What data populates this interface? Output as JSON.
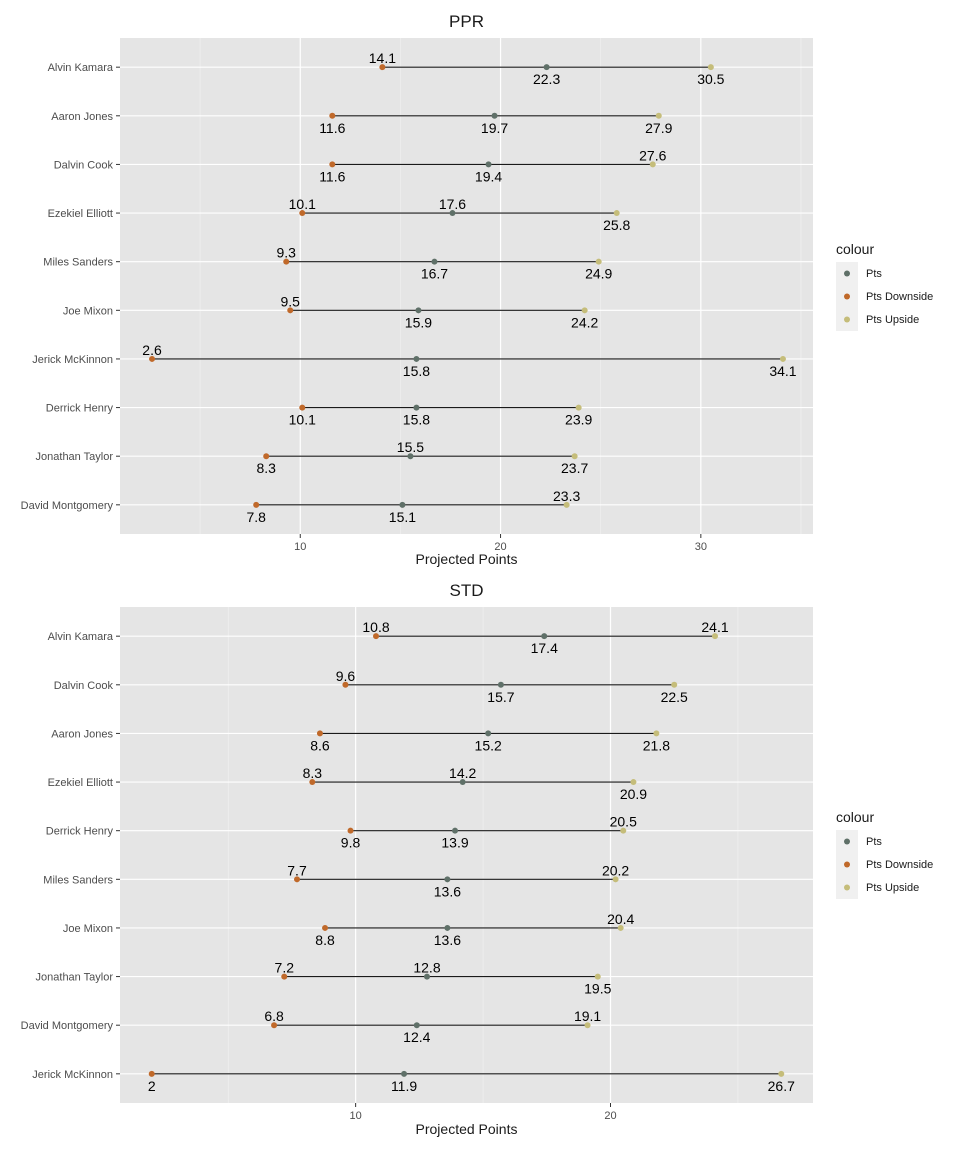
{
  "legend": {
    "title": "colour",
    "items": [
      "Pts",
      "Pts Downside",
      "Pts Upside"
    ]
  },
  "colors": {
    "Pts": "#5f7068",
    "Pts Downside": "#c0692a",
    "Pts Upside": "#c5bd7a",
    "panel_bg": "#e5e5e5",
    "grid_major": "#ffffff",
    "segment": "#1a1a1a"
  },
  "chart_data": [
    {
      "type": "dumbbell",
      "title": "PPR",
      "xlabel": "Projected Points",
      "ylabel": "",
      "xlim": [
        1,
        35.6
      ],
      "xticks": [
        10,
        20,
        30
      ],
      "grid": true,
      "legend_position": "right",
      "players": [
        {
          "name": "Alvin Kamara",
          "pts": 22.3,
          "downside": 14.1,
          "upside": 30.5
        },
        {
          "name": "Aaron Jones",
          "pts": 19.7,
          "downside": 11.6,
          "upside": 27.9
        },
        {
          "name": "Dalvin Cook",
          "pts": 19.4,
          "downside": 11.6,
          "upside": 27.6
        },
        {
          "name": "Ezekiel Elliott",
          "pts": 17.6,
          "downside": 10.1,
          "upside": 25.8
        },
        {
          "name": "Miles Sanders",
          "pts": 16.7,
          "downside": 9.3,
          "upside": 24.9
        },
        {
          "name": "Joe Mixon",
          "pts": 15.9,
          "downside": 9.5,
          "upside": 24.2
        },
        {
          "name": "Jerick McKinnon",
          "pts": 15.8,
          "downside": 2.6,
          "upside": 34.1
        },
        {
          "name": "Derrick Henry",
          "pts": 15.8,
          "downside": 10.1,
          "upside": 23.9
        },
        {
          "name": "Jonathan Taylor",
          "pts": 15.5,
          "downside": 8.3,
          "upside": 23.7
        },
        {
          "name": "David Montgomery",
          "pts": 15.1,
          "downside": 7.8,
          "upside": 23.3
        }
      ],
      "label_pos": [
        {
          "pts": "below",
          "downside": "above",
          "upside": "below"
        },
        {
          "pts": "below",
          "downside": "below",
          "upside": "below"
        },
        {
          "pts": "below",
          "downside": "below",
          "upside": "above"
        },
        {
          "pts": "above",
          "downside": "above",
          "upside": "below"
        },
        {
          "pts": "below",
          "downside": "above",
          "upside": "below"
        },
        {
          "pts": "below",
          "downside": "above",
          "upside": "below"
        },
        {
          "pts": "below",
          "downside": "above",
          "upside": "below"
        },
        {
          "pts": "below",
          "downside": "below",
          "upside": "below"
        },
        {
          "pts": "above",
          "downside": "below",
          "upside": "below"
        },
        {
          "pts": "below",
          "downside": "below",
          "upside": "above"
        }
      ]
    },
    {
      "type": "dumbbell",
      "title": "STD",
      "xlabel": "Projected Points",
      "ylabel": "",
      "xlim": [
        0.755,
        27.945
      ],
      "xticks": [
        10,
        20
      ],
      "grid": true,
      "legend_position": "right",
      "players": [
        {
          "name": "Alvin Kamara",
          "pts": 17.4,
          "downside": 10.8,
          "upside": 24.1
        },
        {
          "name": "Dalvin Cook",
          "pts": 15.7,
          "downside": 9.6,
          "upside": 22.5
        },
        {
          "name": "Aaron Jones",
          "pts": 15.2,
          "downside": 8.6,
          "upside": 21.8
        },
        {
          "name": "Ezekiel Elliott",
          "pts": 14.2,
          "downside": 8.3,
          "upside": 20.9
        },
        {
          "name": "Derrick Henry",
          "pts": 13.9,
          "downside": 9.8,
          "upside": 20.5
        },
        {
          "name": "Miles Sanders",
          "pts": 13.6,
          "downside": 7.7,
          "upside": 20.2
        },
        {
          "name": "Joe Mixon",
          "pts": 13.6,
          "downside": 8.8,
          "upside": 20.4
        },
        {
          "name": "Jonathan Taylor",
          "pts": 12.8,
          "downside": 7.2,
          "upside": 19.5
        },
        {
          "name": "David Montgomery",
          "pts": 12.4,
          "downside": 6.8,
          "upside": 19.1
        },
        {
          "name": "Jerick McKinnon",
          "pts": 11.9,
          "downside": 2,
          "upside": 26.7
        }
      ],
      "label_pos": [
        {
          "pts": "below",
          "downside": "above",
          "upside": "above"
        },
        {
          "pts": "below",
          "downside": "above",
          "upside": "below"
        },
        {
          "pts": "below",
          "downside": "below",
          "upside": "below"
        },
        {
          "pts": "above",
          "downside": "above",
          "upside": "below"
        },
        {
          "pts": "below",
          "downside": "below",
          "upside": "above"
        },
        {
          "pts": "below",
          "downside": "above",
          "upside": "above"
        },
        {
          "pts": "below",
          "downside": "below",
          "upside": "above"
        },
        {
          "pts": "above",
          "downside": "above",
          "upside": "below"
        },
        {
          "pts": "below",
          "downside": "above",
          "upside": "above"
        },
        {
          "pts": "below",
          "downside": "below",
          "upside": "below"
        }
      ]
    }
  ]
}
